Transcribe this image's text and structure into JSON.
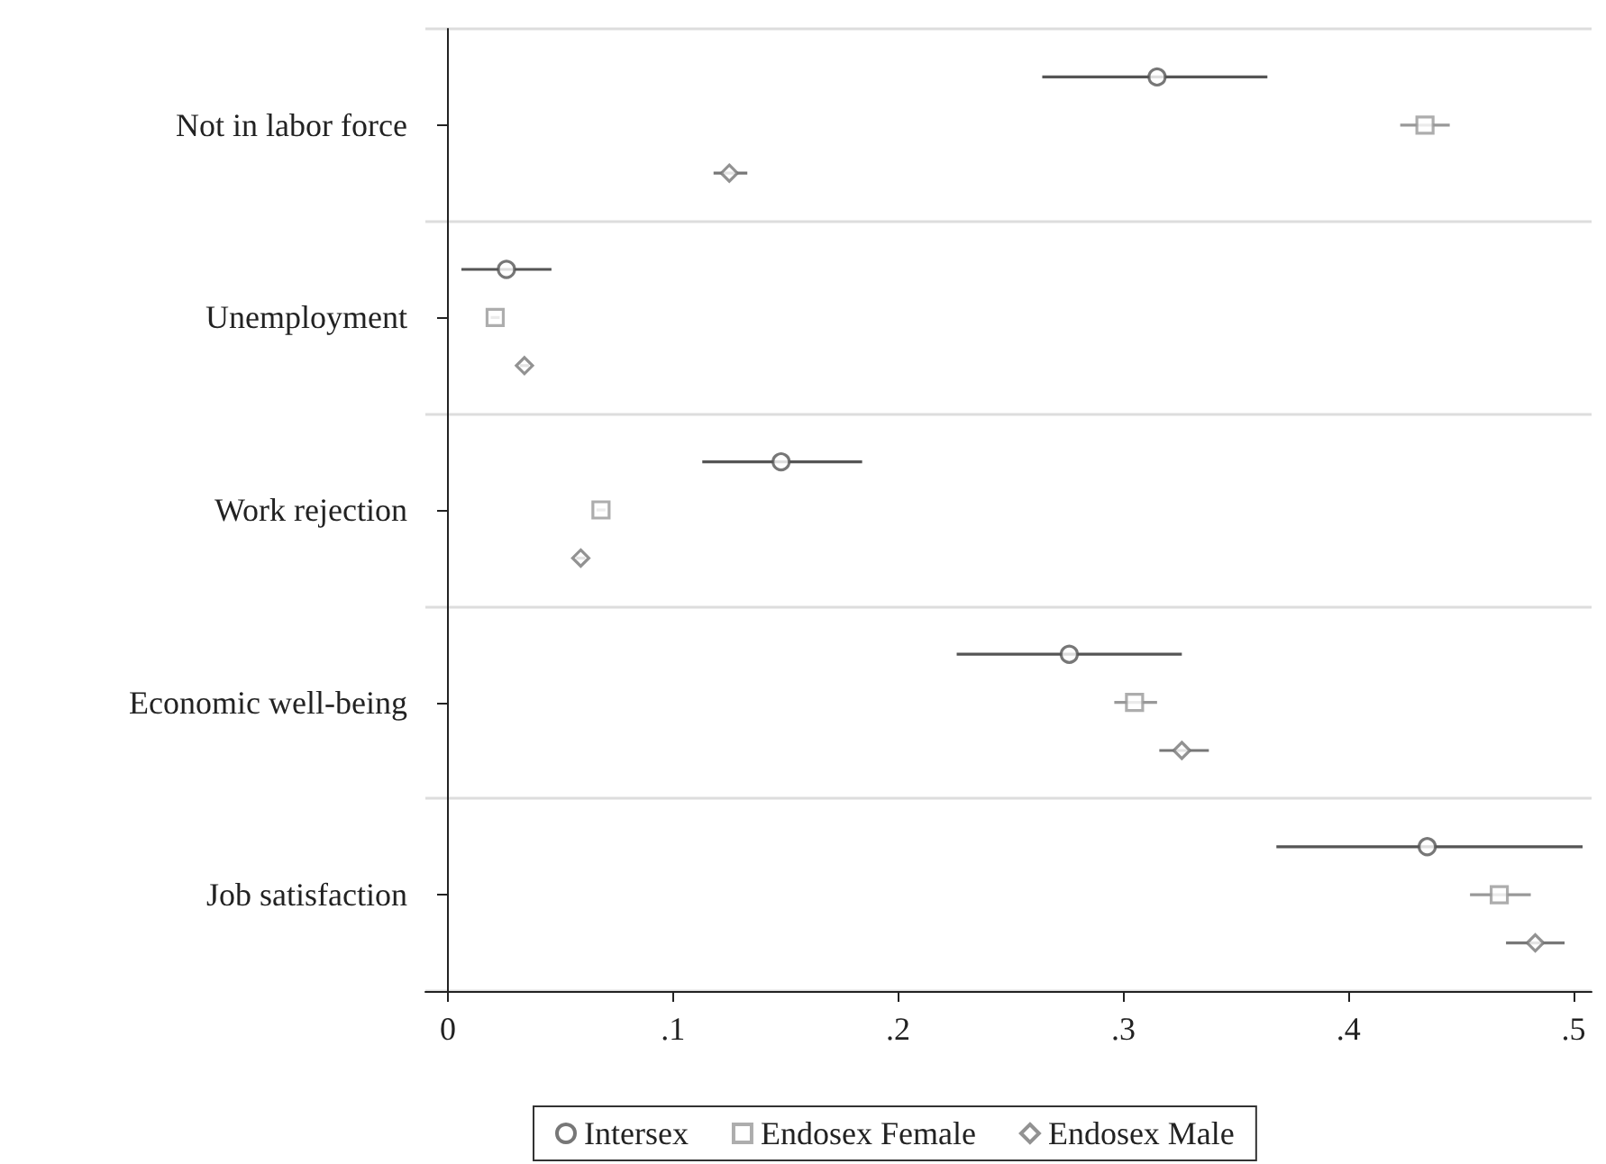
{
  "chart_data": {
    "type": "scatter",
    "orientation": "horizontal",
    "categories": [
      "Not in labor force",
      "Unemployment",
      "Work rejection",
      "Economic well-being",
      "Job satisfaction"
    ],
    "series": [
      {
        "name": "Intersex",
        "color": "#555555",
        "marker": "circle",
        "values": [
          0.315,
          0.026,
          0.148,
          0.276,
          0.435
        ],
        "errors": [
          [
            0.264,
            0.364
          ],
          [
            0.006,
            0.046
          ],
          [
            0.113,
            0.184
          ],
          [
            0.226,
            0.326
          ],
          [
            0.368,
            0.504
          ]
        ]
      },
      {
        "name": "Endosex Female",
        "color": "#999999",
        "marker": "square",
        "values": [
          0.434,
          0.021,
          0.068,
          0.305,
          0.467
        ],
        "errors": [
          [
            0.423,
            0.445
          ],
          [
            0.019,
            0.023
          ],
          [
            0.066,
            0.07
          ],
          [
            0.296,
            0.315
          ],
          [
            0.454,
            0.481
          ]
        ]
      },
      {
        "name": "Endosex Male",
        "color": "#777777",
        "marker": "diamond",
        "values": [
          0.125,
          0.034,
          0.059,
          0.326,
          0.483
        ],
        "errors": [
          [
            0.118,
            0.133
          ],
          [
            0.032,
            0.036
          ],
          [
            0.057,
            0.061
          ],
          [
            0.316,
            0.338
          ],
          [
            0.47,
            0.496
          ]
        ]
      }
    ],
    "xlim": [
      -0.01,
      0.508
    ],
    "xticks": [
      {
        "value": 0,
        "label": "0"
      },
      {
        "value": 0.1,
        "label": ".1"
      },
      {
        "value": 0.2,
        "label": ".2"
      },
      {
        "value": 0.3,
        "label": ".3"
      },
      {
        "value": 0.4,
        "label": ".4"
      },
      {
        "value": 0.5,
        "label": ".5"
      }
    ],
    "grid": "y",
    "legend": "bottom"
  }
}
